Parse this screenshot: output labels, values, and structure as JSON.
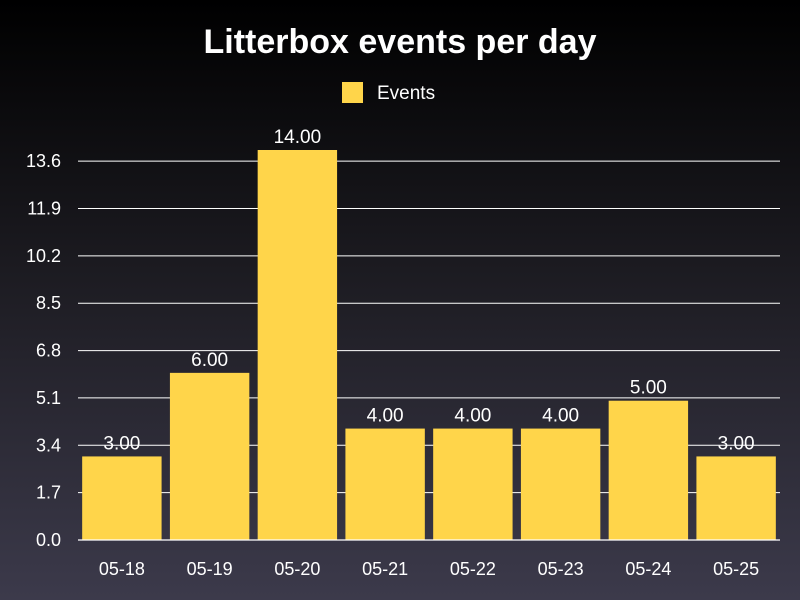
{
  "chart_data": {
    "type": "bar",
    "title": "Litterbox events per day",
    "xlabel": "",
    "ylabel": "",
    "categories": [
      "05-18",
      "05-19",
      "05-20",
      "05-21",
      "05-22",
      "05-23",
      "05-24",
      "05-25"
    ],
    "series": [
      {
        "name": "Events",
        "values": [
          3,
          6,
          14,
          4,
          4,
          4,
          5,
          3
        ],
        "value_labels": [
          "3.00",
          "6.00",
          "14.00",
          "4.00",
          "4.00",
          "4.00",
          "5.00",
          "3.00"
        ],
        "color": "#ffd54a"
      }
    ],
    "yticks": [
      0.0,
      1.7,
      3.4,
      5.1,
      6.8,
      8.5,
      10.2,
      11.9,
      13.6
    ],
    "ytick_labels": [
      "0.0",
      "1.7",
      "3.4",
      "5.1",
      "6.8",
      "8.5",
      "10.2",
      "11.9",
      "13.6"
    ],
    "ylim": [
      0,
      14.0
    ],
    "grid": true,
    "legend_position": "top-center",
    "colors": {
      "bar": "#ffd54a",
      "text": "#ffffff",
      "grid": "#ffffff"
    }
  }
}
